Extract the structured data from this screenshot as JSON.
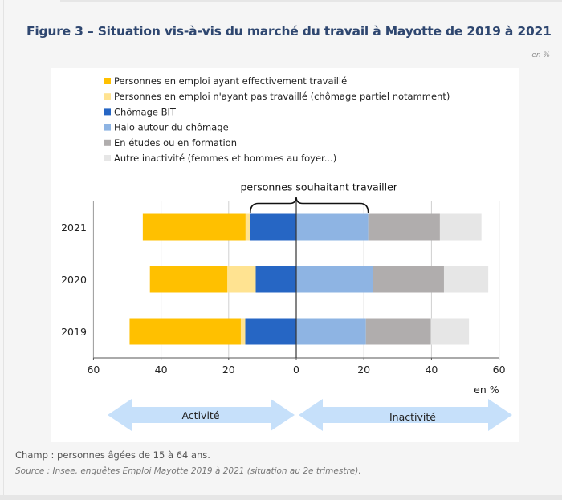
{
  "figure": {
    "title": "Figure 3 – Situation vis-à-vis du marché du travail à Mayotte de 2019 à 2021",
    "unit_label": "en %",
    "champ": "Champ : personnes âgées de 15 à 64 ans.",
    "source": "Source : Insee, enquêtes Emploi Mayotte 2019 à 2021 (situation au 2e trimestre)."
  },
  "chart_data": {
    "type": "bar",
    "orientation": "horizontal-diverging",
    "stacked": true,
    "title": "Figure 3 – Situation vis-à-vis du marché du travail à Mayotte de 2019 à 2021",
    "categories": [
      "2021",
      "2020",
      "2019"
    ],
    "xlabel": "en %",
    "xlim": [
      -60,
      60
    ],
    "xticks": [
      -60,
      -40,
      -20,
      0,
      20,
      40,
      60
    ],
    "xtick_labels": [
      "60",
      "40",
      "20",
      "0",
      "20",
      "40",
      "60"
    ],
    "grid": true,
    "legend_position": "top",
    "series": [
      {
        "name": "Personnes en emploi ayant effectivement travaillé",
        "side": "left",
        "color": "#ffc000",
        "values": [
          30.4,
          22.9,
          32.9
        ]
      },
      {
        "name": "Personnes en emploi n'ayant pas travaillé (chômage partiel notamment)",
        "side": "left",
        "color": "#ffe391",
        "values": [
          1.4,
          8.4,
          1.3
        ]
      },
      {
        "name": "Chômage BIT",
        "side": "left",
        "color": "#2666c4",
        "values": [
          13.6,
          12.0,
          15.1
        ]
      },
      {
        "name": "Halo autour du chômage",
        "side": "right",
        "color": "#8eb4e3",
        "values": [
          21.3,
          22.7,
          20.6
        ]
      },
      {
        "name": "En études ou en formation",
        "side": "right",
        "color": "#b0adad",
        "values": [
          21.2,
          21.0,
          19.2
        ]
      },
      {
        "name": "Autre inactivité (femmes et hommes au foyer...)",
        "side": "right",
        "color": "#e6e6e6",
        "values": [
          12.3,
          13.1,
          11.3
        ]
      }
    ],
    "annotations": {
      "brace_label": "personnes souhaitant travailler",
      "brace_year": "2021",
      "left_arrow_label": "Activité",
      "right_arrow_label": "Inactivité",
      "arrow_color": "#c6e0fa"
    }
  }
}
